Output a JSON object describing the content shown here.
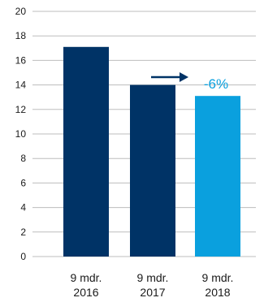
{
  "chart_data": {
    "type": "bar",
    "title": "",
    "xlabel": "",
    "ylabel": "",
    "ylim": [
      0,
      20
    ],
    "yticks": [
      0,
      2,
      4,
      6,
      8,
      10,
      12,
      14,
      16,
      18,
      20
    ],
    "grid": true,
    "categories": [
      [
        "9 mdr.",
        "2016"
      ],
      [
        "9 mdr.",
        "2017"
      ],
      [
        "9 mdr.",
        "2018"
      ]
    ],
    "values": [
      17.1,
      14.0,
      13.1
    ],
    "colors": [
      "#003366",
      "#003366",
      "#0aa0de"
    ],
    "annotation": {
      "text": "-6%",
      "color": "#0aa0de",
      "arrow_color": "#003366"
    }
  }
}
